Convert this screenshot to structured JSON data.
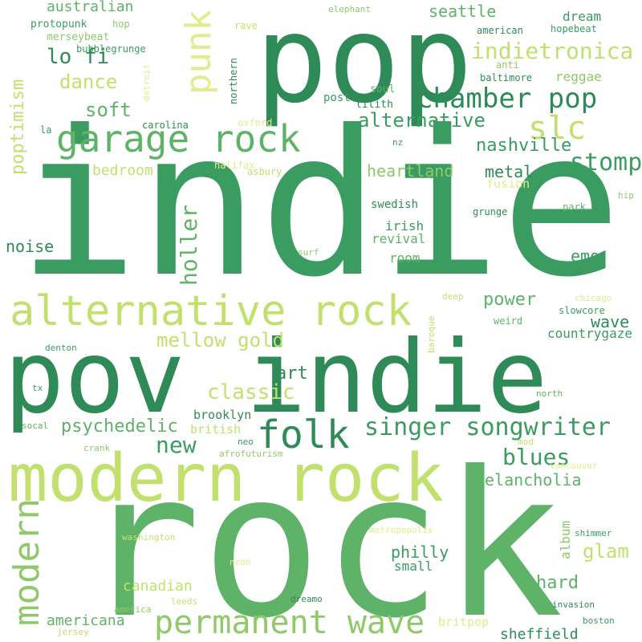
{
  "palette": {
    "dark_green": "#2e8b57",
    "green": "#3a9c61",
    "mid_green": "#5fb368",
    "light_green": "#90c969",
    "lime": "#c2e06e",
    "pale_yellow": "#e2ec8a"
  },
  "words": [
    {
      "text": "indie"
    },
    {
      "text": "rock"
    },
    {
      "text": "pop"
    },
    {
      "text": "pov indie"
    },
    {
      "text": "modern rock"
    },
    {
      "text": "alternative rock"
    },
    {
      "text": "garage rock"
    },
    {
      "text": "permanent wave"
    },
    {
      "text": "chamber pop"
    },
    {
      "text": "folk"
    },
    {
      "text": "punk"
    },
    {
      "text": "modern"
    },
    {
      "text": "indietronica"
    },
    {
      "text": "slc"
    },
    {
      "text": "singer songwriter"
    },
    {
      "text": "stomp"
    },
    {
      "text": "lo fi"
    },
    {
      "text": "nashville"
    },
    {
      "text": "poptimism"
    },
    {
      "text": "alternative"
    },
    {
      "text": "mellow gold"
    },
    {
      "text": "classic"
    },
    {
      "text": "holler"
    },
    {
      "text": "soft"
    },
    {
      "text": "dance"
    },
    {
      "text": "blues"
    },
    {
      "text": "new"
    },
    {
      "text": "glam"
    },
    {
      "text": "psychedelic"
    },
    {
      "text": "art"
    },
    {
      "text": "heartland"
    },
    {
      "text": "emo"
    },
    {
      "text": "power"
    },
    {
      "text": "hard"
    },
    {
      "text": "metal"
    },
    {
      "text": "seattle"
    },
    {
      "text": "australian"
    },
    {
      "text": "bedroom"
    },
    {
      "text": "noise"
    },
    {
      "text": "wave"
    },
    {
      "text": "melancholia"
    },
    {
      "text": "philly"
    },
    {
      "text": "americana"
    },
    {
      "text": "sheffield"
    },
    {
      "text": "canadian"
    },
    {
      "text": "dream"
    },
    {
      "text": "reggae"
    },
    {
      "text": "countrygaze"
    },
    {
      "text": "swedish"
    },
    {
      "text": "irish"
    },
    {
      "text": "revival"
    },
    {
      "text": "room"
    },
    {
      "text": "brooklyn"
    },
    {
      "text": "british"
    },
    {
      "text": "small"
    },
    {
      "text": "album"
    },
    {
      "text": "britpop"
    },
    {
      "text": "post"
    },
    {
      "text": "lilith"
    },
    {
      "text": "fusion"
    },
    {
      "text": "soul"
    },
    {
      "text": "anti"
    },
    {
      "text": "hopebeat"
    },
    {
      "text": "american"
    },
    {
      "text": "baltimore"
    },
    {
      "text": "grunge"
    },
    {
      "text": "protopunk"
    },
    {
      "text": "merseybeat"
    },
    {
      "text": "bubblegrunge"
    },
    {
      "text": "hop"
    },
    {
      "text": "rave"
    },
    {
      "text": "northern"
    },
    {
      "text": "detroit"
    },
    {
      "text": "elephant"
    },
    {
      "text": "carolina"
    },
    {
      "text": "oxford"
    },
    {
      "text": "la"
    },
    {
      "text": "nz"
    },
    {
      "text": "halifax"
    },
    {
      "text": "asbury"
    },
    {
      "text": "surf"
    },
    {
      "text": "deep"
    },
    {
      "text": "baroque"
    },
    {
      "text": "chicago"
    },
    {
      "text": "slowcore"
    },
    {
      "text": "weird"
    },
    {
      "text": "denton"
    },
    {
      "text": "tx"
    },
    {
      "text": "socal"
    },
    {
      "text": "crank"
    },
    {
      "text": "neo"
    },
    {
      "text": "afrofuturism"
    },
    {
      "text": "north"
    },
    {
      "text": "mod"
    },
    {
      "text": "vancouver"
    },
    {
      "text": "metropopolis"
    },
    {
      "text": "washington"
    },
    {
      "text": "neon"
    },
    {
      "text": "america"
    },
    {
      "text": "leeds"
    },
    {
      "text": "dreamo"
    },
    {
      "text": "invasion"
    },
    {
      "text": "shimmer"
    },
    {
      "text": "boston"
    },
    {
      "text": "jersey"
    },
    {
      "text": "park"
    },
    {
      "text": "hip"
    }
  ]
}
